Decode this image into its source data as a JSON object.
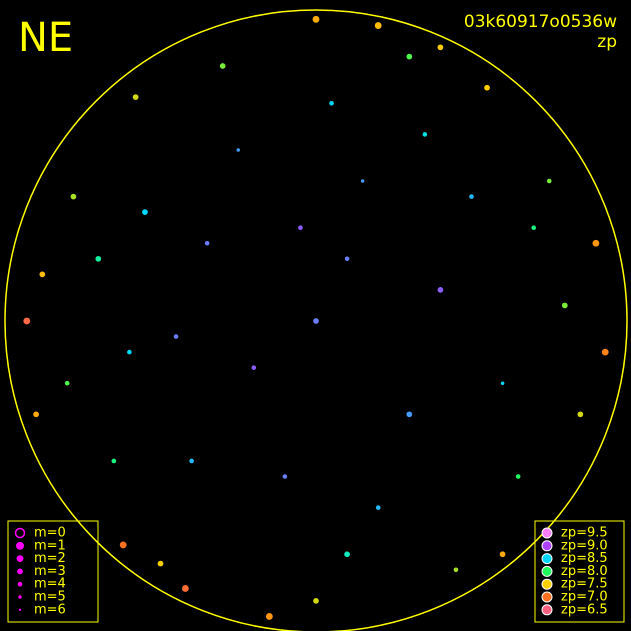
{
  "chart_data": {
    "type": "scatter",
    "title": "NE",
    "camera": "03k60917o0536w",
    "metric": "zp",
    "xlim": [
      -1,
      1
    ],
    "ylim": [
      -1,
      1
    ],
    "horizon_color": "#ffff00",
    "size_legend": [
      {
        "value": 0,
        "label": "m=0"
      },
      {
        "value": 1,
        "label": "m=1"
      },
      {
        "value": 2,
        "label": "m=2"
      },
      {
        "value": 3,
        "label": "m=3"
      },
      {
        "value": 4,
        "label": "m=4"
      },
      {
        "value": 5,
        "label": "m=5"
      },
      {
        "value": 6,
        "label": "m=6"
      }
    ],
    "size_legend_color": "#ff00ff",
    "color_legend": [
      {
        "value": 9.5,
        "label": "zp=9.5"
      },
      {
        "value": 9.0,
        "label": "zp=9.0"
      },
      {
        "value": 8.5,
        "label": "zp=8.5"
      },
      {
        "value": 8.0,
        "label": "zp=8.0"
      },
      {
        "value": 7.5,
        "label": "zp=7.5"
      },
      {
        "value": 7.0,
        "label": "zp=7.0"
      },
      {
        "value": 6.5,
        "label": "zp=6.5"
      }
    ],
    "color_scale": [
      "#ff80ff",
      "#b040ff",
      "#00d8ff",
      "#20ff60",
      "#ffd000",
      "#ff7020",
      "#ff6080"
    ],
    "points": {
      "x": [
        0.0,
        0.1,
        -0.2,
        0.3,
        -0.35,
        0.15,
        -0.1,
        0.4,
        -0.45,
        0.2,
        -0.25,
        0.05,
        0.5,
        -0.55,
        0.35,
        -0.4,
        0.6,
        -0.6,
        0.1,
        -0.05,
        0.7,
        -0.7,
        0.65,
        -0.65,
        0.8,
        -0.8,
        0.75,
        -0.78,
        0.3,
        -0.3,
        0.0,
        0.45,
        -0.5,
        0.85,
        -0.88,
        0.9,
        -0.9,
        0.55,
        -0.58,
        0.2,
        -0.15,
        0.6,
        -0.62,
        0.4,
        -0.42,
        0.93,
        -0.93,
        0.0
      ],
      "y": [
        0.0,
        0.2,
        -0.15,
        -0.3,
        0.25,
        0.45,
        -0.5,
        0.1,
        -0.05,
        -0.6,
        0.55,
        0.7,
        0.4,
        0.35,
        0.6,
        -0.45,
        -0.2,
        -0.1,
        -0.75,
        0.3,
        0.3,
        0.2,
        -0.5,
        -0.45,
        0.05,
        -0.2,
        0.45,
        0.4,
        0.85,
        0.82,
        -0.9,
        -0.8,
        -0.78,
        -0.3,
        0.15,
        0.25,
        -0.3,
        0.75,
        0.72,
        0.95,
        -0.95,
        -0.75,
        -0.72,
        0.88,
        -0.86,
        -0.1,
        0.0,
        0.97
      ],
      "zp": [
        8.8,
        8.8,
        8.9,
        8.7,
        8.8,
        8.7,
        8.8,
        8.9,
        8.8,
        8.6,
        8.7,
        8.5,
        8.6,
        8.5,
        8.4,
        8.6,
        8.5,
        8.5,
        8.3,
        8.9,
        8.1,
        8.2,
        8.0,
        8.1,
        7.8,
        7.9,
        7.8,
        7.7,
        7.9,
        7.8,
        7.6,
        7.7,
        7.5,
        7.6,
        7.4,
        7.2,
        7.3,
        7.5,
        7.6,
        7.4,
        7.2,
        7.3,
        7.0,
        7.5,
        6.9,
        7.1,
        6.8,
        7.3
      ],
      "m": [
        3,
        4,
        4,
        3,
        4,
        5,
        4,
        3,
        4,
        4,
        5,
        4,
        4,
        3,
        4,
        4,
        5,
        4,
        3,
        4,
        4,
        3,
        4,
        4,
        3,
        4,
        4,
        3,
        3,
        3,
        3,
        4,
        3,
        3,
        3,
        2,
        3,
        3,
        3,
        2,
        2,
        3,
        2,
        3,
        2,
        2,
        2,
        2
      ]
    }
  }
}
